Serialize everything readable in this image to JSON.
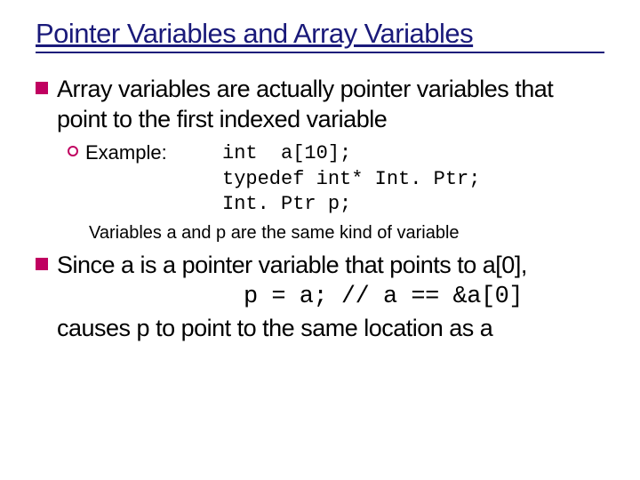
{
  "colors": {
    "title_color": "#1a1a7a",
    "bullet_square_color": "#c00060",
    "bullet_circle_color": "#c00060",
    "text_color": "#000000",
    "background": "#ffffff"
  },
  "typography": {
    "title_fontsize": 31,
    "body_fontsize": 27,
    "sub_fontsize": 22,
    "note_fontsize": 20,
    "code_fontfamily": "Courier New"
  },
  "title": "Pointer Variables and Array Variables",
  "bullets": [
    {
      "level": 1,
      "text": "Array variables are actually pointer variables that point to the first indexed variable"
    },
    {
      "level": 2,
      "label": "Example:",
      "code_lines": [
        "int  a[10];",
        "typedef int* Int. Ptr;",
        "Int. Ptr p;"
      ],
      "note": "Variables a and p are the same kind of variable"
    },
    {
      "level": 1,
      "text_pre": "Since a is a pointer variable that points to a[0],",
      "code_line": "p = a; // a == &a[0]",
      "text_post": "causes p to point to the same location as a"
    }
  ]
}
